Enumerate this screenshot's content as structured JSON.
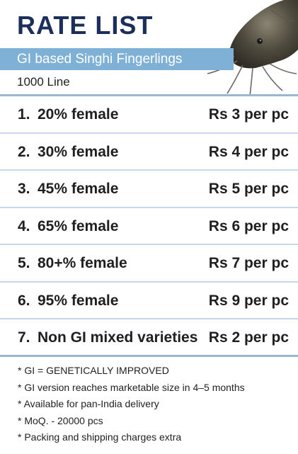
{
  "header": {
    "title": "RATE LIST",
    "subtitle": "GI based Singhi Fingerlings",
    "line_label": "1000 Line"
  },
  "rows": [
    {
      "num": "1.",
      "label": "20% female",
      "price": "Rs 3 per pc"
    },
    {
      "num": "2.",
      "label": "30% female",
      "price": "Rs 4 per pc"
    },
    {
      "num": "3.",
      "label": "45% female",
      "price": "Rs 5 per pc"
    },
    {
      "num": "4.",
      "label": "65% female",
      "price": "Rs 6 per pc"
    },
    {
      "num": "5.",
      "label": "80+% female",
      "price": "Rs 7 per pc"
    },
    {
      "num": "6.",
      "label": "95% female",
      "price": "Rs 9 per pc"
    },
    {
      "num": "7.",
      "label": "Non GI mixed varieties",
      "price": "Rs 2 per pc"
    }
  ],
  "notes": [
    "* GI = GENETICALLY IMPROVED",
    "* GI version reaches marketable size in 4–5 months",
    "* Available for pan-India delivery",
    "* MoQ. - 20000 pcs",
    "* Packing and shipping charges extra"
  ],
  "colors": {
    "title": "#1b2f5a",
    "accent_bar": "#7fb0d6",
    "divider": "#c9d8e8"
  },
  "icons": {
    "fish": "catfish-image"
  }
}
